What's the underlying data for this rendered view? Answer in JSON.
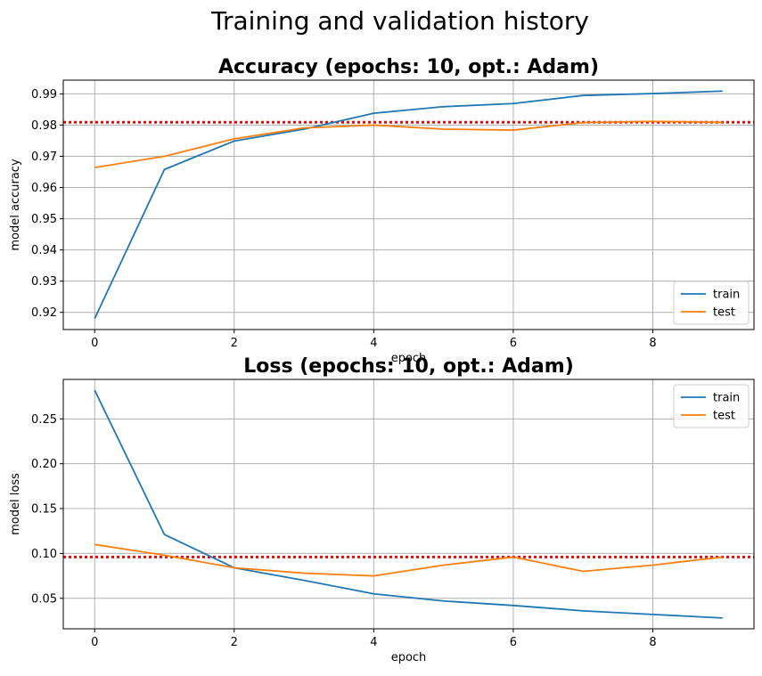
{
  "figure": {
    "suptitle": "Training and validation history"
  },
  "colors": {
    "train": "#1f77b4",
    "test": "#ff7f0e",
    "reference": "#ff0000",
    "grid": "#b0b0b0"
  },
  "chart_data": [
    {
      "type": "line",
      "title": "Accuracy (epochs: 10, opt.: Adam)",
      "xlabel": "epoch",
      "ylabel": "model accuracy",
      "x": [
        0,
        1,
        2,
        3,
        4,
        5,
        6,
        7,
        8,
        9
      ],
      "xlim": [
        -0.45,
        9.45
      ],
      "ylim": [
        0.9145,
        0.9944
      ],
      "xticks": [
        0,
        2,
        4,
        6,
        8
      ],
      "yticks": [
        0.92,
        0.93,
        0.94,
        0.95,
        0.96,
        0.97,
        0.98,
        0.99
      ],
      "ytick_labels": [
        "0.92",
        "0.93",
        "0.94",
        "0.95",
        "0.96",
        "0.97",
        "0.98",
        "0.99"
      ],
      "grid": true,
      "legend_position": "lower right",
      "series": [
        {
          "name": "train",
          "values": [
            0.918,
            0.9658,
            0.9749,
            0.9787,
            0.9838,
            0.9859,
            0.9869,
            0.9895,
            0.9901,
            0.9909
          ]
        },
        {
          "name": "test",
          "values": [
            0.9664,
            0.97,
            0.9756,
            0.9791,
            0.98,
            0.9787,
            0.9784,
            0.9808,
            0.9812,
            0.9809
          ]
        }
      ],
      "reference_line": {
        "y": 0.9809,
        "style": "dotted"
      }
    },
    {
      "type": "line",
      "title": "Loss (epochs: 10, opt.: Adam)",
      "xlabel": "epoch",
      "ylabel": "model loss",
      "x": [
        0,
        1,
        2,
        3,
        4,
        5,
        6,
        7,
        8,
        9
      ],
      "xlim": [
        -0.45,
        9.45
      ],
      "ylim": [
        0.016,
        0.294
      ],
      "xticks": [
        0,
        2,
        4,
        6,
        8
      ],
      "yticks": [
        0.05,
        0.1,
        0.15,
        0.2,
        0.25
      ],
      "ytick_labels": [
        "0.05",
        "0.10",
        "0.15",
        "0.20",
        "0.25"
      ],
      "grid": true,
      "legend_position": "upper right",
      "series": [
        {
          "name": "train",
          "values": [
            0.282,
            0.121,
            0.084,
            0.07,
            0.055,
            0.047,
            0.042,
            0.036,
            0.032,
            0.028
          ]
        },
        {
          "name": "test",
          "values": [
            0.11,
            0.098,
            0.084,
            0.078,
            0.075,
            0.087,
            0.096,
            0.08,
            0.087,
            0.096
          ]
        }
      ],
      "reference_line": {
        "y": 0.096,
        "style": "dotted"
      }
    }
  ]
}
